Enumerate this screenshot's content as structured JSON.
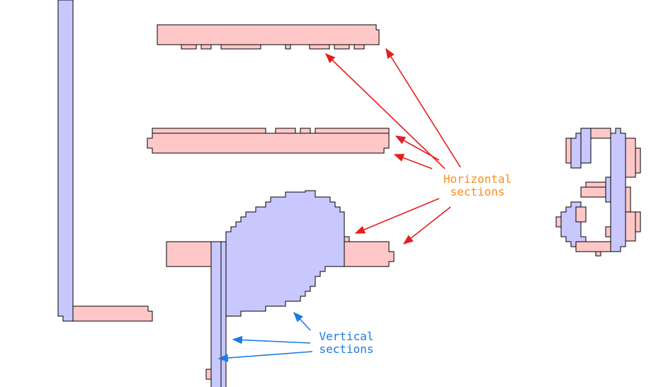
{
  "colors": {
    "horizontal_fill": "#ffc8c8",
    "vertical_fill": "#c8c8ff",
    "outline": "#000000",
    "horizontal_label": "#ff8c1a",
    "vertical_label": "#1a7ae6",
    "horizontal_arrow": "#e61e1e",
    "vertical_arrow": "#1a7ae6"
  },
  "labels": {
    "horizontal": {
      "line1": "Horizontal",
      "line2": "sections"
    },
    "vertical": {
      "line1": "Vertical",
      "line2": "sections"
    }
  }
}
